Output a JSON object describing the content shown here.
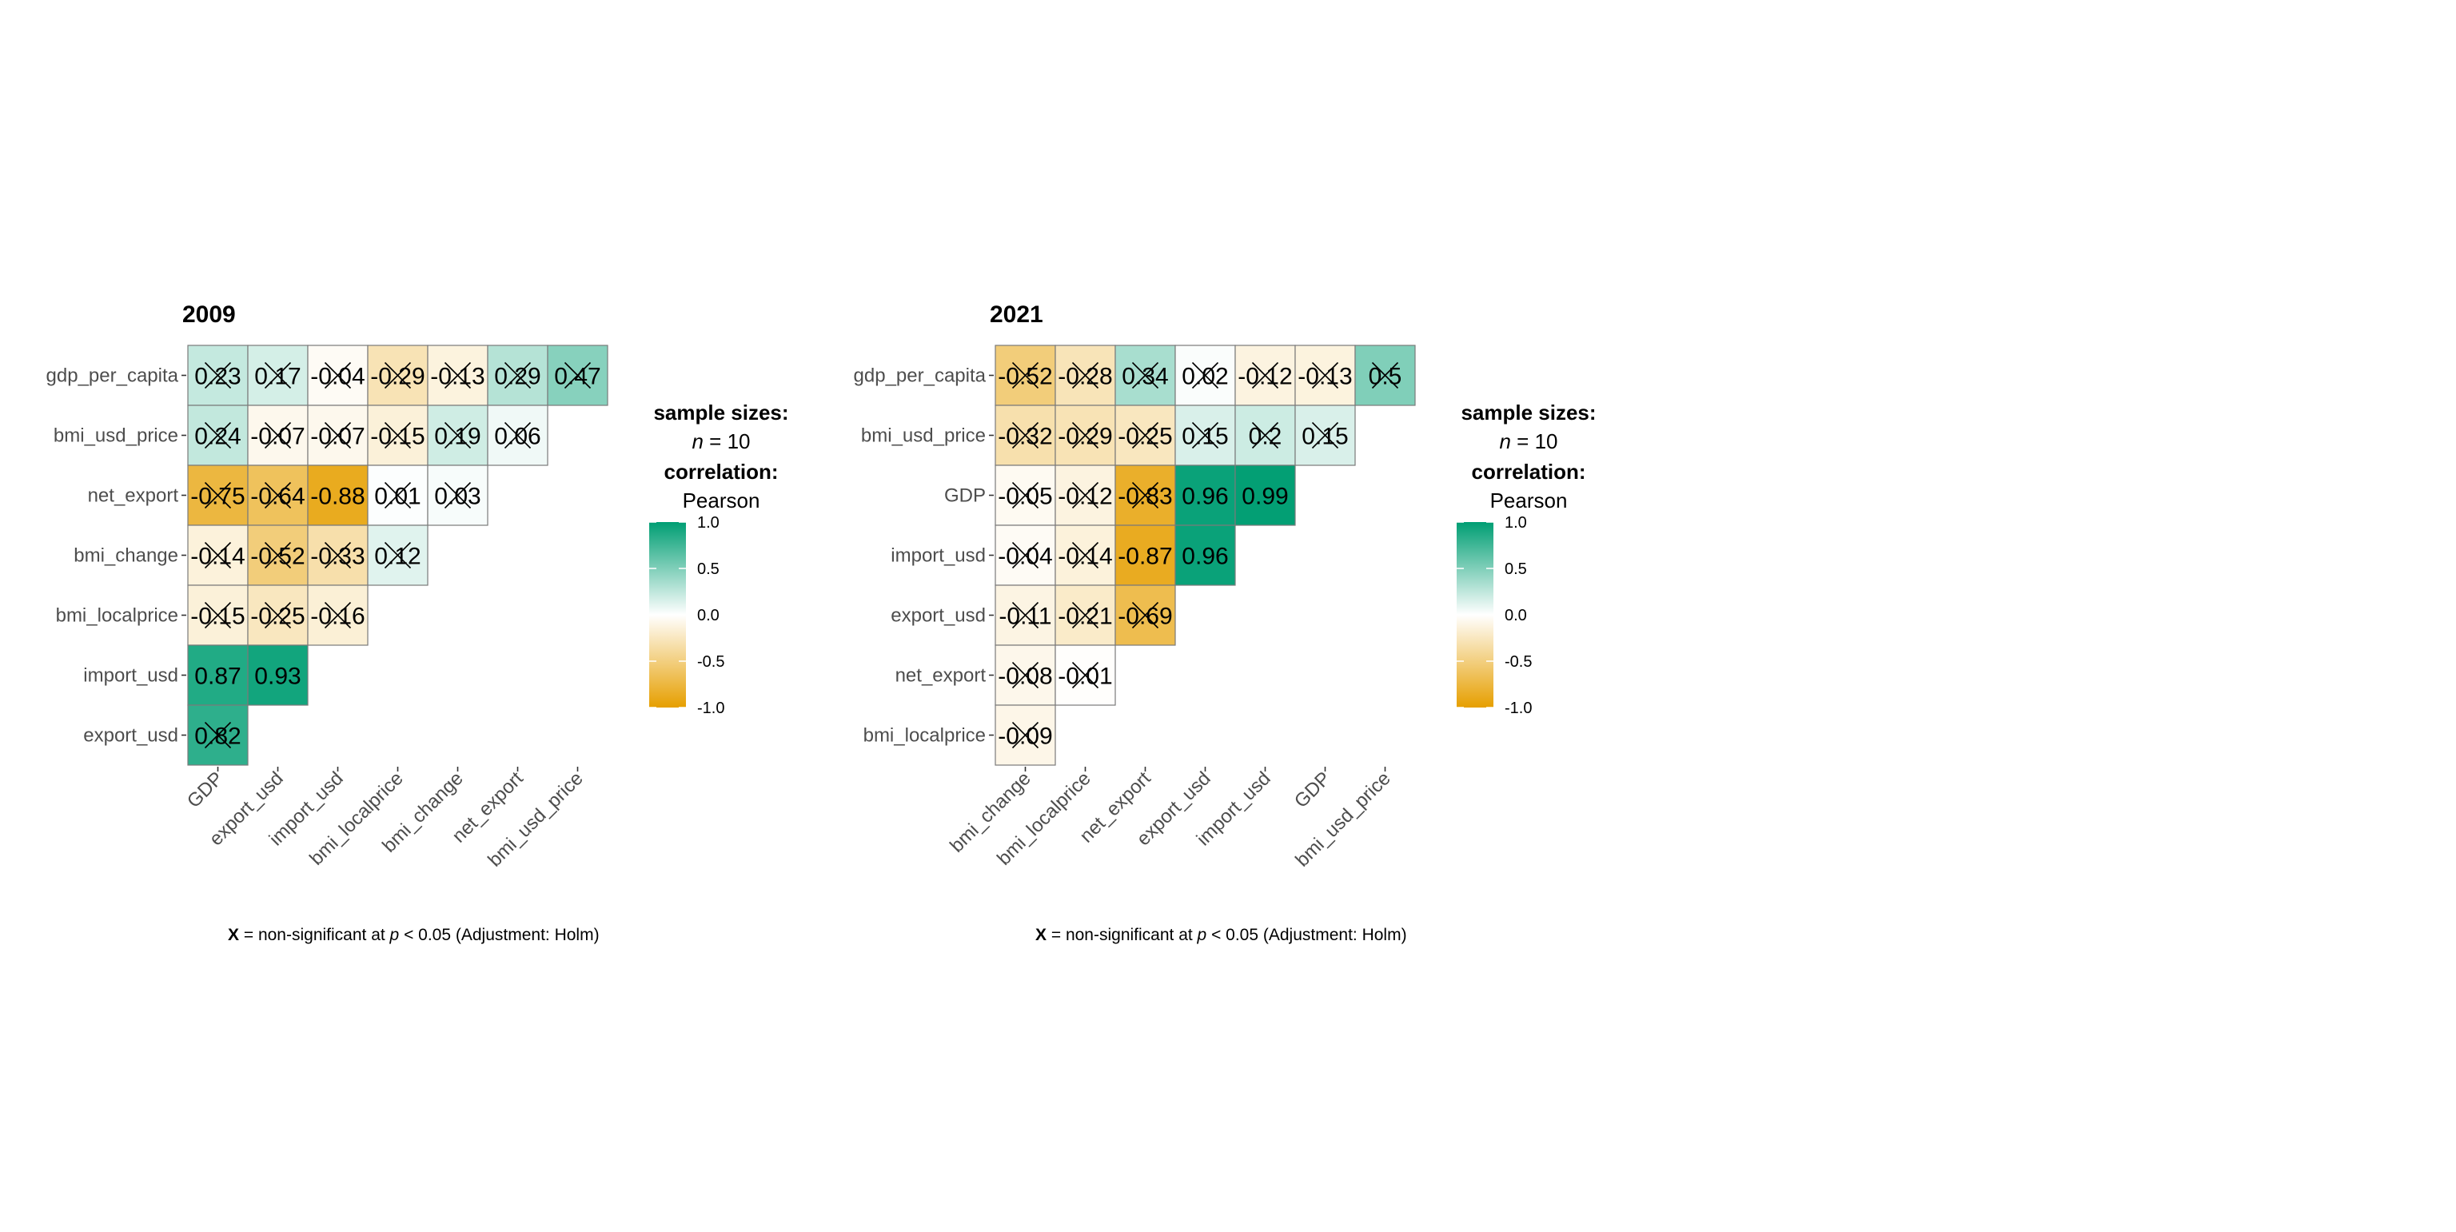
{
  "colors": {
    "negative": "#E69F00",
    "zero": "#FFFFFF",
    "positive": "#009E73"
  },
  "legend": {
    "sample_sizes_title": "sample sizes:",
    "n_symbol": "n",
    "n_rest": " = 10",
    "correlation_title": "correlation:",
    "correlation_method": "Pearson",
    "ticks": [
      "1.0",
      "0.5",
      "0.0",
      "-0.5",
      "-1.0"
    ]
  },
  "caption": {
    "bold": "X",
    "part1": " = non-significant at ",
    "p": "p",
    "part2": " < 0.05 (Adjustment: Holm)"
  },
  "chart_data": [
    {
      "type": "heatmap",
      "title": "2009",
      "row_labels": [
        "gdp_per_capita",
        "bmi_usd_price",
        "net_export",
        "bmi_change",
        "bmi_localprice",
        "import_usd",
        "export_usd"
      ],
      "col_labels": [
        "GDP",
        "export_usd",
        "import_usd",
        "bmi_localprice",
        "bmi_change",
        "net_export",
        "bmi_usd_price"
      ],
      "cells": [
        [
          {
            "v": 0.23,
            "label": "0.23",
            "ns": true
          },
          {
            "v": 0.17,
            "label": "0.17",
            "ns": true
          },
          {
            "v": -0.04,
            "label": "-0.04",
            "ns": true
          },
          {
            "v": -0.29,
            "label": "-0.29",
            "ns": true
          },
          {
            "v": -0.13,
            "label": "-0.13",
            "ns": true
          },
          {
            "v": 0.29,
            "label": "0.29",
            "ns": true
          },
          {
            "v": 0.47,
            "label": "0.47",
            "ns": true
          }
        ],
        [
          {
            "v": 0.24,
            "label": "0.24",
            "ns": true
          },
          {
            "v": -0.07,
            "label": "-0.07",
            "ns": true
          },
          {
            "v": -0.07,
            "label": "-0.07",
            "ns": true
          },
          {
            "v": -0.15,
            "label": "-0.15",
            "ns": true
          },
          {
            "v": 0.19,
            "label": "0.19",
            "ns": true
          },
          {
            "v": 0.06,
            "label": "0.06",
            "ns": true
          }
        ],
        [
          {
            "v": -0.75,
            "label": "-0.75",
            "ns": true
          },
          {
            "v": -0.64,
            "label": "-0.64",
            "ns": true
          },
          {
            "v": -0.88,
            "label": "-0.88",
            "ns": false
          },
          {
            "v": 0.01,
            "label": "0.01",
            "ns": true
          },
          {
            "v": 0.03,
            "label": "0.03",
            "ns": true
          }
        ],
        [
          {
            "v": -0.14,
            "label": "-0.14",
            "ns": true
          },
          {
            "v": -0.52,
            "label": "-0.52",
            "ns": true
          },
          {
            "v": -0.33,
            "label": "-0.33",
            "ns": true
          },
          {
            "v": 0.12,
            "label": "0.12",
            "ns": true
          }
        ],
        [
          {
            "v": -0.15,
            "label": "-0.15",
            "ns": true
          },
          {
            "v": -0.25,
            "label": "-0.25",
            "ns": true
          },
          {
            "v": -0.16,
            "label": "-0.16",
            "ns": true
          }
        ],
        [
          {
            "v": 0.87,
            "label": "0.87",
            "ns": false
          },
          {
            "v": 0.93,
            "label": "0.93",
            "ns": false
          }
        ],
        [
          {
            "v": 0.82,
            "label": "0.82",
            "ns": true
          }
        ]
      ]
    },
    {
      "type": "heatmap",
      "title": "2021",
      "row_labels": [
        "gdp_per_capita",
        "bmi_usd_price",
        "GDP",
        "import_usd",
        "export_usd",
        "net_export",
        "bmi_localprice"
      ],
      "col_labels": [
        "bmi_change",
        "bmi_localprice",
        "net_export",
        "export_usd",
        "import_usd",
        "GDP",
        "bmi_usd_price"
      ],
      "cells": [
        [
          {
            "v": -0.52,
            "label": "-0.52",
            "ns": true
          },
          {
            "v": -0.28,
            "label": "-0.28",
            "ns": true
          },
          {
            "v": 0.34,
            "label": "0.34",
            "ns": true
          },
          {
            "v": 0.02,
            "label": "0.02",
            "ns": true
          },
          {
            "v": -0.12,
            "label": "-0.12",
            "ns": true
          },
          {
            "v": -0.13,
            "label": "-0.13",
            "ns": true
          },
          {
            "v": 0.5,
            "label": "0.5",
            "ns": true
          }
        ],
        [
          {
            "v": -0.32,
            "label": "-0.32",
            "ns": true
          },
          {
            "v": -0.29,
            "label": "-0.29",
            "ns": true
          },
          {
            "v": -0.25,
            "label": "-0.25",
            "ns": true
          },
          {
            "v": 0.15,
            "label": "0.15",
            "ns": true
          },
          {
            "v": 0.2,
            "label": "0.2",
            "ns": true
          },
          {
            "v": 0.15,
            "label": "0.15",
            "ns": true
          }
        ],
        [
          {
            "v": -0.05,
            "label": "-0.05",
            "ns": true
          },
          {
            "v": -0.12,
            "label": "-0.12",
            "ns": true
          },
          {
            "v": -0.83,
            "label": "-0.83",
            "ns": true
          },
          {
            "v": 0.96,
            "label": "0.96",
            "ns": false
          },
          {
            "v": 0.99,
            "label": "0.99",
            "ns": false
          }
        ],
        [
          {
            "v": -0.04,
            "label": "-0.04",
            "ns": true
          },
          {
            "v": -0.14,
            "label": "-0.14",
            "ns": true
          },
          {
            "v": -0.87,
            "label": "-0.87",
            "ns": false
          },
          {
            "v": 0.96,
            "label": "0.96",
            "ns": false
          }
        ],
        [
          {
            "v": -0.11,
            "label": "-0.11",
            "ns": true
          },
          {
            "v": -0.21,
            "label": "-0.21",
            "ns": true
          },
          {
            "v": -0.69,
            "label": "-0.69",
            "ns": true
          }
        ],
        [
          {
            "v": -0.08,
            "label": "-0.08",
            "ns": true
          },
          {
            "v": -0.01,
            "label": "-0.01",
            "ns": true
          }
        ],
        [
          {
            "v": -0.09,
            "label": "-0.09",
            "ns": true
          }
        ]
      ]
    }
  ]
}
